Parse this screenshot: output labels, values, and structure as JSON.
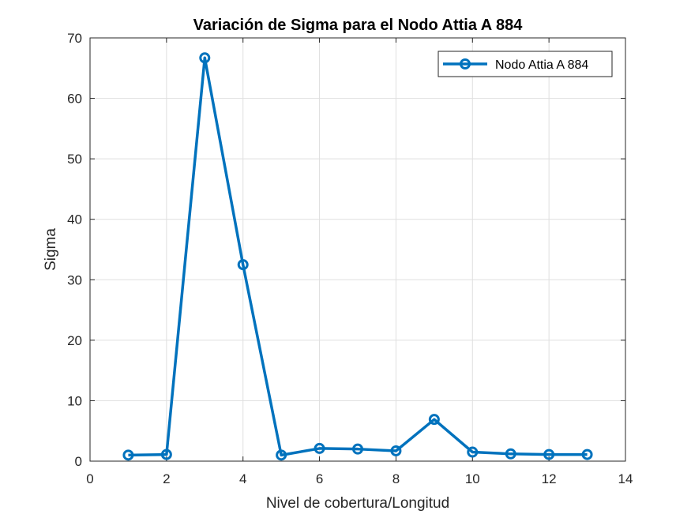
{
  "chart_data": {
    "type": "line",
    "title": "Variación de Sigma para el Nodo Attia A 884",
    "xlabel": "Nivel de cobertura/Longitud",
    "ylabel": "Sigma",
    "xlim": [
      0,
      14
    ],
    "ylim": [
      0,
      70
    ],
    "xticks": [
      0,
      2,
      4,
      6,
      8,
      10,
      12,
      14
    ],
    "yticks": [
      0,
      10,
      20,
      30,
      40,
      50,
      60,
      70
    ],
    "grid": true,
    "legend_position": "top-right",
    "series": [
      {
        "name": "Nodo Attia A 884",
        "color": "#0072BD",
        "marker": "circle",
        "x": [
          1,
          2,
          3,
          4,
          5,
          6,
          7,
          8,
          9,
          10,
          11,
          12,
          13
        ],
        "y": [
          1.0,
          1.1,
          66.7,
          32.5,
          1.0,
          2.1,
          2.0,
          1.7,
          6.9,
          1.5,
          1.2,
          1.1,
          1.1
        ]
      }
    ]
  }
}
